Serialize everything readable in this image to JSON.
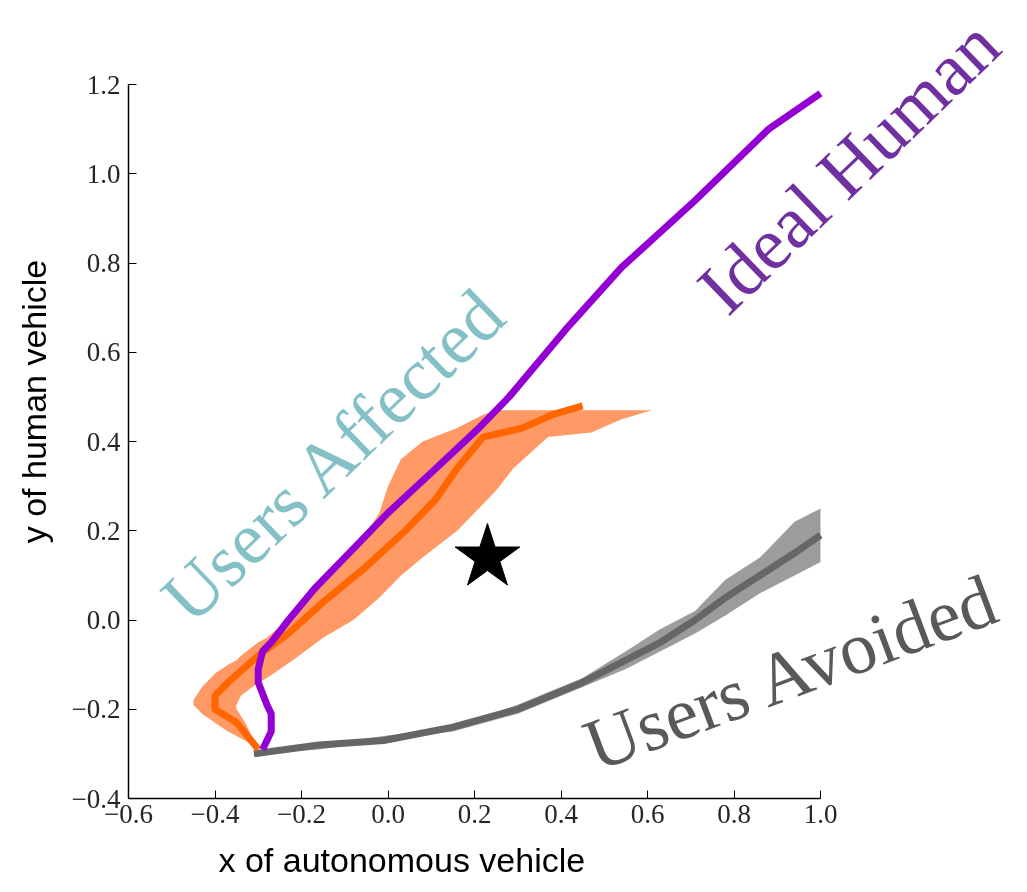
{
  "chart_data": {
    "type": "line",
    "xlabel": "x of autonomous vehicle",
    "ylabel": "y of human vehicle",
    "xlim": [
      -0.6,
      1.0
    ],
    "ylim": [
      -0.4,
      1.2
    ],
    "xticks": [
      {
        "value": -0.6,
        "label": "−0.6"
      },
      {
        "value": -0.4,
        "label": "−0.4"
      },
      {
        "value": -0.2,
        "label": "−0.2"
      },
      {
        "value": 0.0,
        "label": "0.0"
      },
      0.2,
      0.4,
      0.6,
      0.8,
      {
        "value": 1.0,
        "label": "1.0"
      }
    ],
    "yticks": [
      {
        "value": -0.4,
        "label": "−0.4"
      },
      {
        "value": -0.2,
        "label": "−0.2"
      },
      {
        "value": 0.0,
        "label": "0.0"
      },
      0.2,
      0.4,
      0.6,
      0.8,
      {
        "value": 1.0,
        "label": "1.0"
      },
      1.2
    ],
    "series": [
      {
        "color": "#ff9966",
        "x": [
          -0.45,
          -0.43,
          -0.4,
          -0.37,
          -0.35,
          -0.33,
          -0.3
        ],
        "values": [
          null,
          null,
          null,
          null,
          null,
          null,
          null
        ],
        "lower": [
          -0.19,
          -0.21,
          -0.23,
          -0.25,
          -0.26,
          -0.27,
          -0.29
        ],
        "upper": [
          -0.18,
          -0.15,
          -0.12,
          -0.1,
          -0.2,
          -0.23,
          -0.29
        ]
      },
      {
        "color": "#ff9966",
        "x": [
          -0.37,
          -0.35,
          -0.34,
          -0.3,
          -0.28,
          -0.22,
          -0.15,
          -0.08,
          -0.02,
          0.0,
          0.03,
          0.08,
          0.16,
          0.22,
          0.25,
          0.29,
          0.37,
          0.47,
          0.54,
          0.61
        ],
        "values": [
          null,
          null,
          null,
          null,
          null,
          null,
          null,
          null,
          null,
          null,
          null,
          null,
          null,
          null,
          null,
          null,
          null,
          null,
          null,
          null
        ],
        "lower": [
          -0.21,
          -0.19,
          -0.17,
          -0.14,
          -0.13,
          -0.09,
          -0.04,
          0.0,
          0.05,
          0.07,
          0.1,
          0.14,
          0.2,
          0.26,
          0.29,
          0.34,
          0.41,
          0.42,
          0.45,
          0.47
        ],
        "upper": [
          -0.1,
          -0.09,
          -0.08,
          -0.05,
          -0.04,
          0.01,
          0.08,
          0.15,
          0.24,
          0.3,
          0.36,
          0.4,
          0.43,
          0.46,
          0.47,
          0.47,
          0.47,
          0.47,
          0.47,
          0.47
        ]
      },
      {
        "name": "Users Avoided",
        "color": "#666666",
        "x": [
          -0.31,
          -0.16,
          -0.01,
          0.15,
          0.3,
          0.45,
          0.55,
          0.63,
          0.71,
          0.78,
          0.86,
          0.94,
          1.0
        ],
        "values": [
          -0.3,
          -0.28,
          -0.27,
          -0.24,
          -0.2,
          -0.14,
          -0.09,
          -0.05,
          0.0,
          0.05,
          0.1,
          0.15,
          0.19
        ],
        "lower": [
          -0.3,
          -0.29,
          -0.27,
          -0.25,
          -0.21,
          -0.15,
          -0.11,
          -0.07,
          -0.03,
          0.01,
          0.06,
          0.1,
          0.13
        ],
        "upper": [
          -0.3,
          -0.28,
          -0.26,
          -0.24,
          -0.19,
          -0.13,
          -0.07,
          -0.02,
          0.02,
          0.09,
          0.14,
          0.22,
          0.25
        ]
      },
      {
        "name": "Users Affected",
        "color": "#ff6600",
        "x": [
          -0.3,
          -0.35,
          -0.4,
          -0.4,
          -0.37,
          -0.3,
          -0.23,
          -0.15,
          -0.05,
          0.04,
          0.11,
          0.16,
          0.22,
          0.31,
          0.38,
          0.45
        ],
        "values": [
          -0.29,
          -0.23,
          -0.2,
          -0.17,
          -0.14,
          -0.08,
          -0.03,
          0.04,
          0.12,
          0.2,
          0.27,
          0.34,
          0.41,
          0.43,
          0.46,
          0.48
        ]
      },
      {
        "name": "Ideal Human",
        "color": "#9400d3",
        "x": [
          -0.29,
          -0.27,
          -0.27,
          -0.28,
          -0.3,
          -0.3,
          -0.29,
          -0.27,
          -0.23,
          -0.17,
          -0.09,
          0.0,
          0.1,
          0.21,
          0.28,
          0.41,
          0.54,
          0.71,
          0.88,
          1.0
        ],
        "values": [
          -0.29,
          -0.25,
          -0.21,
          -0.19,
          -0.14,
          -0.11,
          -0.07,
          -0.05,
          0.0,
          0.07,
          0.15,
          0.24,
          0.33,
          0.43,
          0.5,
          0.65,
          0.79,
          0.94,
          1.1,
          1.18
        ]
      },
      {
        "type": "scatter",
        "color": "#000000",
        "marker": "star",
        "x": [
          0.23
        ],
        "values": [
          0.14
        ]
      }
    ]
  }
}
